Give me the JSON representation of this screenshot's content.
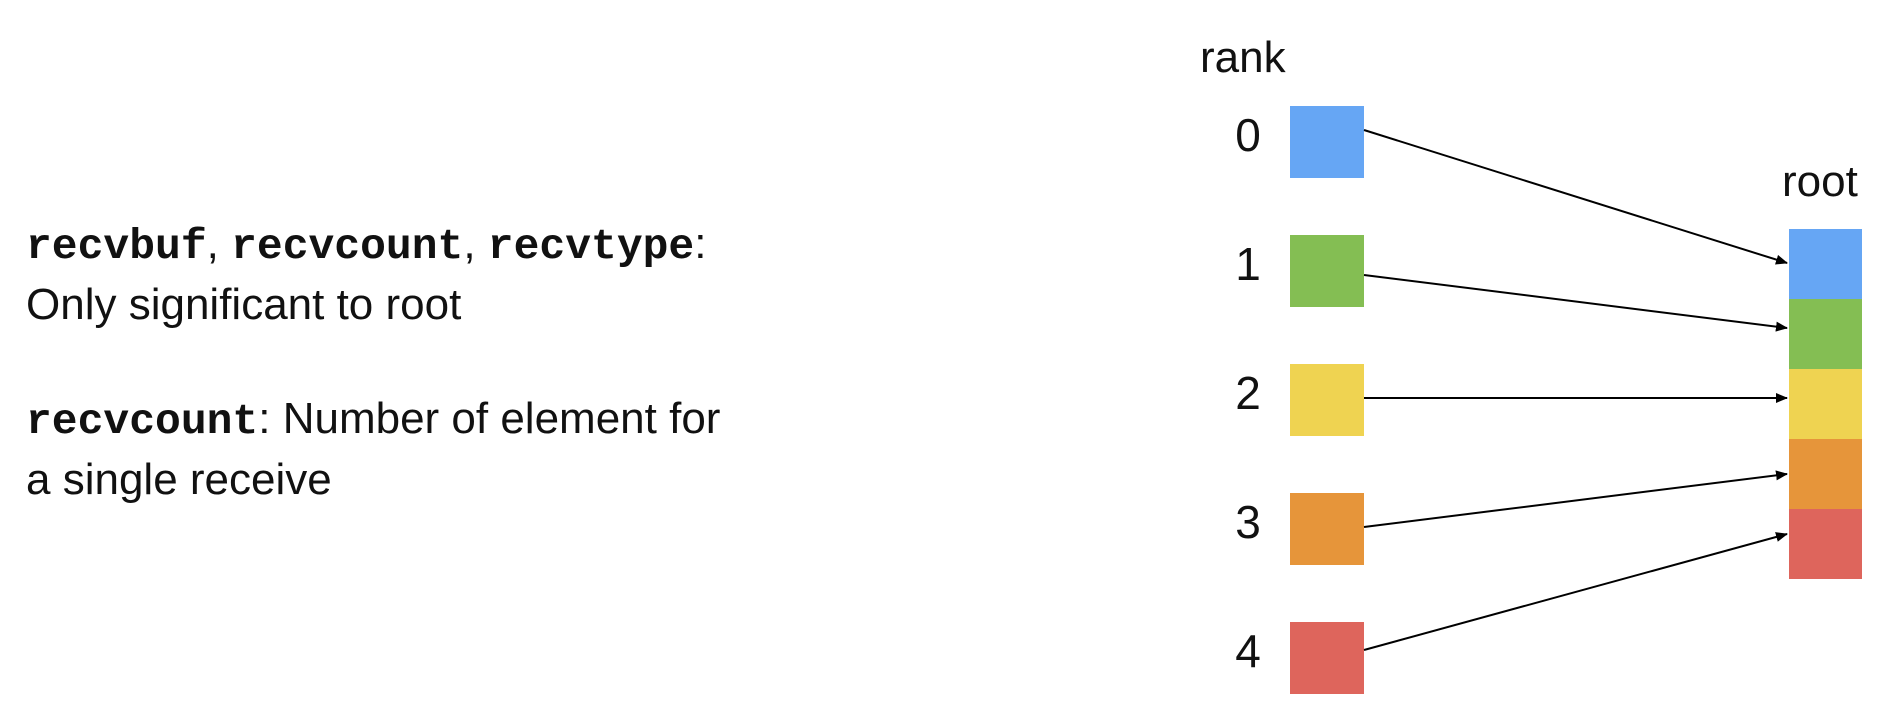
{
  "description": {
    "line1_parts": [
      {
        "text": "recvbuf",
        "code": true
      },
      {
        "text": ", ",
        "code": false
      },
      {
        "text": "recvcount",
        "code": true
      },
      {
        "text": ", ",
        "code": false
      },
      {
        "text": "recvtype",
        "code": true
      },
      {
        "text": ":",
        "code": false
      }
    ],
    "line2": "Only significant to root",
    "line3_code": "recvcount",
    "line3_rest": ": Number of element for",
    "line4": "a single receive"
  },
  "diagram": {
    "rank_header": "rank",
    "root_header": "root",
    "ranks": [
      {
        "label": "0",
        "color": "#66A6F4"
      },
      {
        "label": "1",
        "color": "#84BE53"
      },
      {
        "label": "2",
        "color": "#EFD351"
      },
      {
        "label": "3",
        "color": "#E6953A"
      },
      {
        "label": "4",
        "color": "#DE655C"
      }
    ],
    "root_cells": [
      {
        "color": "#66A6F4"
      },
      {
        "color": "#84BE53"
      },
      {
        "color": "#EFD351"
      },
      {
        "color": "#E6953A"
      },
      {
        "color": "#DE655C"
      }
    ],
    "arrow_color": "#000000"
  }
}
